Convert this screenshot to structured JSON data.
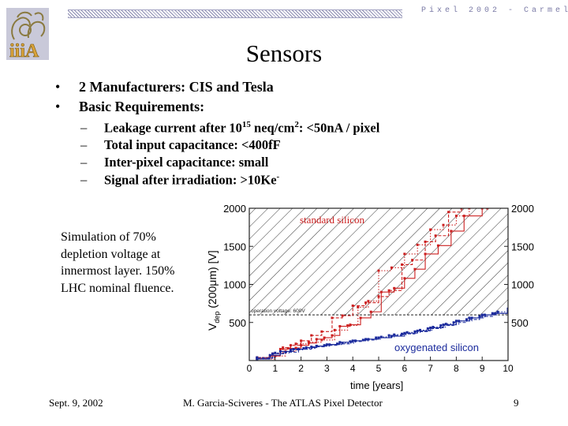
{
  "header": {
    "conference": "Pixel 2002 - Carmel"
  },
  "slide": {
    "title": "Sensors",
    "bullets": [
      {
        "text": "2 Manufacturers: CIS and Tesla"
      },
      {
        "text": "Basic Requirements:"
      }
    ],
    "subbullets": [
      {
        "before": "Leakage current after 10",
        "sup": "15",
        "mid": " neq/cm",
        "sup2": "2",
        "after": ": <50nA / pixel"
      },
      {
        "before": "Total input capacitance: <400fF",
        "sup": "",
        "mid": "",
        "sup2": "",
        "after": ""
      },
      {
        "before": "Inter-pixel capacitance: small",
        "sup": "",
        "mid": "",
        "sup2": "",
        "after": ""
      },
      {
        "before": "Signal after irradiation: >10Ke",
        "sup": "-",
        "mid": "",
        "sup2": "",
        "after": ""
      }
    ],
    "simulation_note": "Simulation of 70% depletion voltage at innermost layer. 150% LHC nominal fluence."
  },
  "footer": {
    "date": "Sept. 9, 2002",
    "author": "M. Garcia-Sciveres - The ATLAS Pixel Detector",
    "page": "9"
  },
  "chart_data": {
    "type": "line",
    "xlabel": "time [years]",
    "ylabel_main": "V",
    "ylabel_sub": "dep",
    "ylabel_rest": " (200μm) [V]",
    "xlim": [
      0,
      10
    ],
    "ylim": [
      0,
      2000
    ],
    "xticks": [
      0,
      1,
      2,
      3,
      4,
      5,
      6,
      7,
      8,
      9,
      10
    ],
    "yticks": [
      500,
      1000,
      1500,
      2000
    ],
    "annotations": {
      "standard": "standard silicon",
      "oxygenated": "oxygenated silicon",
      "operation": "operation voltage: 600V"
    },
    "operation_voltage": 600,
    "colors": {
      "standard": "#cc2020",
      "oxygenated": "#1a2a9c",
      "accent": "#7a7aa6"
    },
    "series": [
      {
        "group": "standard",
        "x": [
          0.3,
          0.8,
          1.2,
          1.5,
          1.8,
          2.0,
          2.3,
          2.6,
          2.9,
          3.2,
          3.5,
          3.9,
          4.3,
          4.7,
          5.1,
          5.6,
          6.0,
          6.4,
          6.8,
          7.3,
          7.8,
          8.3,
          9.0
        ],
        "y": [
          30,
          60,
          150,
          160,
          165,
          200,
          230,
          280,
          300,
          330,
          450,
          470,
          560,
          640,
          900,
          950,
          1080,
          1200,
          1400,
          1510,
          1700,
          1900,
          2000
        ]
      },
      {
        "group": "standard",
        "x": [
          0.3,
          0.9,
          1.3,
          1.6,
          2.0,
          2.4,
          2.8,
          3.2,
          3.6,
          4.0,
          4.5,
          5.0,
          5.4,
          5.9,
          6.3,
          6.8,
          7.2,
          7.7,
          8.2
        ],
        "y": [
          40,
          90,
          170,
          200,
          260,
          330,
          380,
          560,
          590,
          720,
          760,
          840,
          920,
          1260,
          1320,
          1560,
          1640,
          1950,
          2000
        ]
      },
      {
        "group": "standard",
        "x": [
          0.3,
          1.0,
          1.4,
          1.8,
          2.3,
          2.8,
          3.3,
          3.8,
          4.2,
          4.6,
          5.0,
          5.5,
          6.0,
          6.5,
          7.0,
          7.5,
          8.0,
          8.5,
          9.2
        ],
        "y": [
          20,
          60,
          120,
          220,
          240,
          270,
          400,
          460,
          700,
          780,
          1180,
          1220,
          1400,
          1520,
          1720,
          1780,
          1900,
          2000,
          2000
        ]
      },
      {
        "group": "oxygenated",
        "x": [
          0.3,
          0.8,
          1.2,
          1.7,
          2.2,
          2.6,
          3.0,
          3.5,
          4.0,
          4.5,
          5.0,
          5.5,
          6.0,
          6.5,
          7.0,
          7.5,
          8.0,
          8.5,
          9.0,
          9.5,
          10.0
        ],
        "y": [
          20,
          70,
          120,
          150,
          170,
          190,
          210,
          240,
          260,
          280,
          300,
          320,
          360,
          390,
          430,
          470,
          520,
          560,
          600,
          620,
          640
        ]
      },
      {
        "group": "oxygenated",
        "x": [
          0.3,
          0.9,
          1.4,
          1.9,
          2.4,
          2.9,
          3.4,
          3.9,
          4.4,
          4.9,
          5.4,
          5.9,
          6.4,
          6.9,
          7.4,
          7.9,
          8.4,
          8.9,
          9.4,
          10.0
        ],
        "y": [
          30,
          90,
          110,
          150,
          180,
          200,
          220,
          250,
          270,
          300,
          330,
          350,
          380,
          420,
          460,
          500,
          540,
          580,
          620,
          660
        ]
      },
      {
        "group": "oxygenated",
        "x": [
          0.3,
          1.0,
          1.6,
          2.1,
          2.6,
          3.1,
          3.6,
          4.1,
          4.6,
          5.1,
          5.6,
          6.1,
          6.6,
          7.1,
          7.6,
          8.1,
          8.6,
          9.1,
          9.6,
          10.0
        ],
        "y": [
          40,
          100,
          140,
          160,
          190,
          210,
          230,
          260,
          280,
          310,
          340,
          370,
          400,
          440,
          480,
          520,
          560,
          600,
          640,
          680
        ]
      }
    ]
  }
}
